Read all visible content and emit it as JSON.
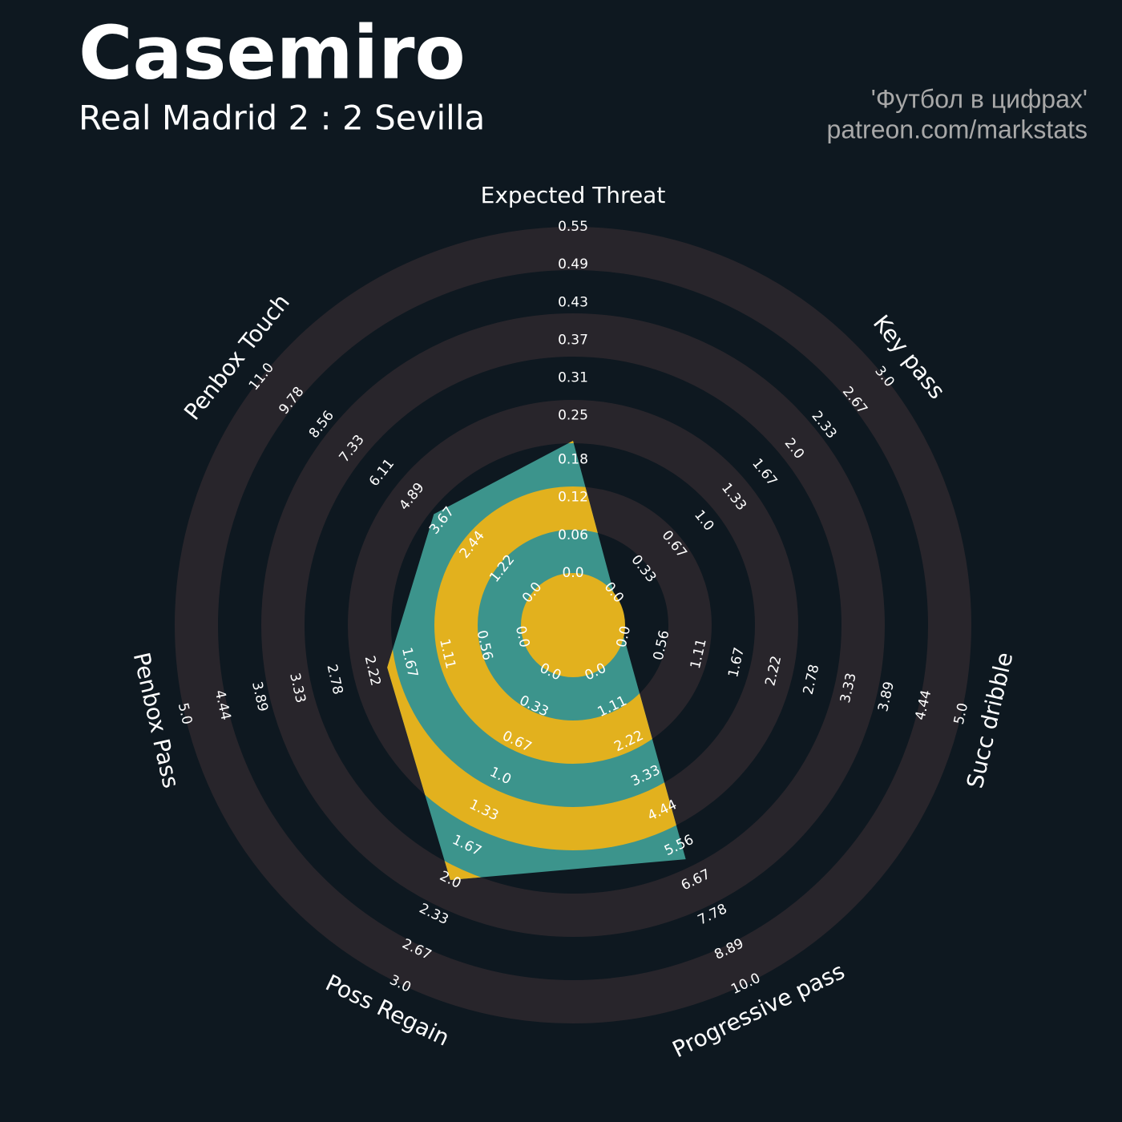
{
  "chart_data": {
    "type": "radar",
    "title": "Casemiro",
    "subtitle": "Real Madrid 2 : 2 Sevilla",
    "credits": [
      "'Футбол в цифрах'",
      "patreon.com/markstats"
    ],
    "axes": [
      {
        "name": "Expected Threat",
        "range": [
          0,
          0.55
        ],
        "ticks": [
          {
            "value": 0,
            "label": "0.0"
          },
          0.06,
          0.12,
          0.18,
          0.25,
          0.31,
          0.37,
          0.43,
          0.49,
          0.55
        ]
      },
      {
        "name": "Key pass",
        "range": [
          0,
          3
        ],
        "ticks": [
          {
            "value": 0,
            "label": "0.0"
          },
          0.33,
          0.67,
          {
            "value": 1,
            "label": "1.0"
          },
          1.33,
          1.67,
          {
            "value": 2,
            "label": "2.0"
          },
          2.33,
          2.67,
          {
            "value": 3,
            "label": "3.0"
          }
        ]
      },
      {
        "name": "Succ dribble",
        "range": [
          0,
          5
        ],
        "ticks": [
          {
            "value": 0,
            "label": "0.0"
          },
          0.56,
          1.11,
          1.67,
          2.22,
          2.78,
          3.33,
          3.89,
          4.44,
          {
            "value": 5,
            "label": "5.0"
          }
        ]
      },
      {
        "name": "Progressive pass",
        "range": [
          0,
          10
        ],
        "ticks": [
          {
            "value": 0,
            "label": "0.0"
          },
          1.11,
          2.22,
          3.33,
          4.44,
          5.56,
          6.67,
          7.78,
          8.89,
          {
            "value": 10,
            "label": "10.0"
          }
        ]
      },
      {
        "name": "Poss Regain",
        "range": [
          0,
          3
        ],
        "ticks": [
          {
            "value": 0,
            "label": "0.0"
          },
          0.33,
          0.67,
          {
            "value": 1,
            "label": "1.0"
          },
          1.33,
          1.67,
          {
            "value": 2,
            "label": "2.0"
          },
          2.33,
          2.67,
          {
            "value": 3,
            "label": "3.0"
          }
        ]
      },
      {
        "name": "Penbox Pass",
        "range": [
          0,
          5
        ],
        "ticks": [
          {
            "value": 0,
            "label": "0.0"
          },
          0.56,
          1.11,
          1.67,
          2.22,
          2.78,
          3.33,
          3.89,
          4.44,
          {
            "value": 5,
            "label": "5.0"
          }
        ]
      },
      {
        "name": "Penbox Touch",
        "range": [
          0,
          11
        ],
        "ticks": [
          {
            "value": 0,
            "label": "0.0"
          },
          1.22,
          2.44,
          3.67,
          4.89,
          6.11,
          7.33,
          8.56,
          9.78,
          {
            "value": 11,
            "label": "11.0"
          }
        ]
      }
    ],
    "series": [
      {
        "color": "#3c948c",
        "values": [
          0.21,
          0,
          0,
          6.0,
          2.0,
          2.0,
          4.0
        ]
      }
    ],
    "highlight_color": "#e2b11e",
    "ring_color": "#28252b"
  }
}
